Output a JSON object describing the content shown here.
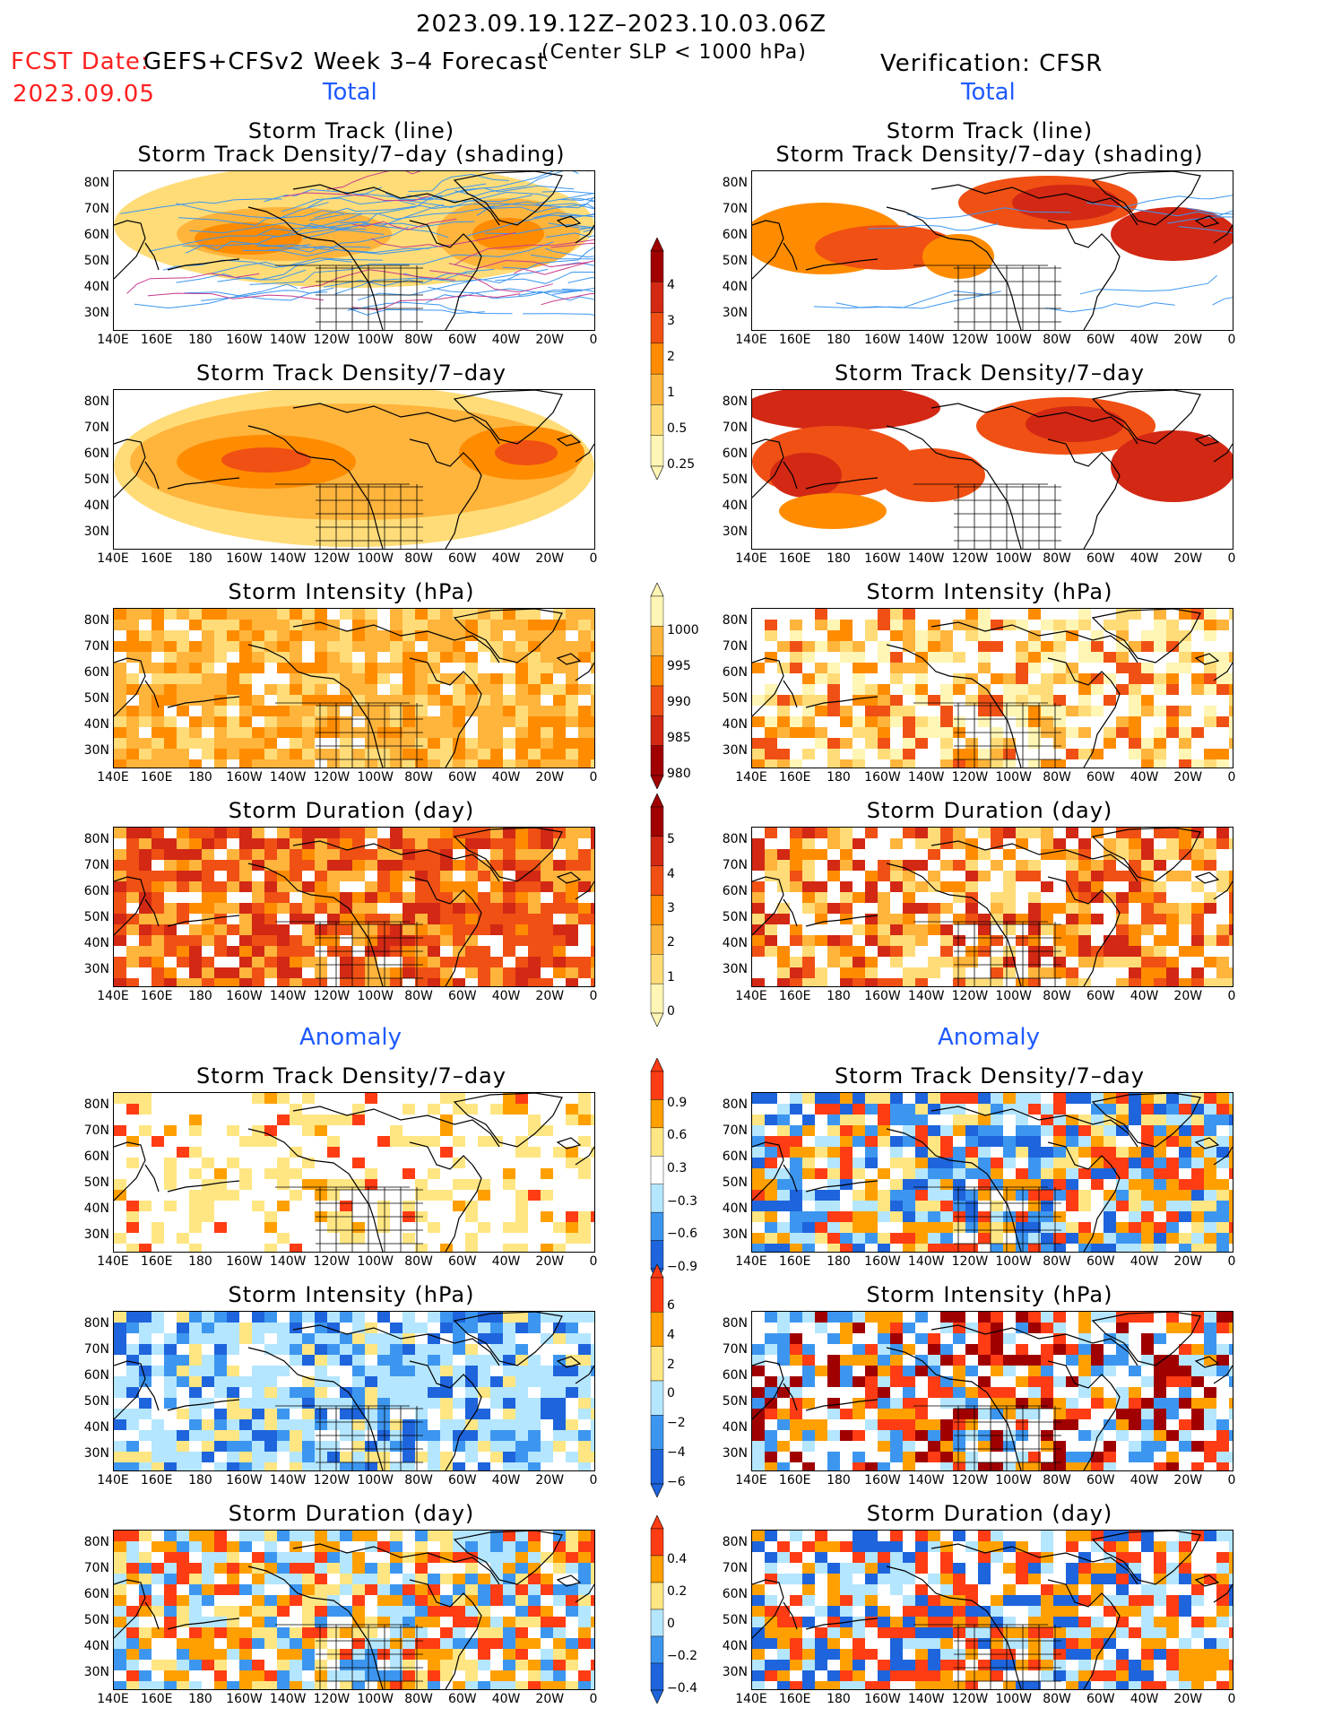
{
  "header": {
    "date_range": "2023.09.19.12Z–2023.10.03.06Z",
    "fcst_label": "FCST Date:",
    "fcst_date": "2023.09.05",
    "model": "GEFS+CFSv2 Week 3–4 Forecast",
    "criterion": "(Center SLP < 1000 hPa)",
    "verification": "Verification: CFSR"
  },
  "sections": {
    "total_left": "Total",
    "total_right": "Total",
    "anomaly_left": "Anomaly",
    "anomaly_right": "Anomaly"
  },
  "panel_titles": {
    "track_line": "Storm Track (line)",
    "track_density_shading": "Storm Track Density/7–day (shading)",
    "track_density": "Storm Track Density/7–day",
    "intensity": "Storm Intensity (hPa)",
    "duration": "Storm Duration (day)"
  },
  "axes": {
    "lat_labels": [
      "80N",
      "70N",
      "60N",
      "50N",
      "40N",
      "30N"
    ],
    "lon_labels": [
      "140E",
      "160E",
      "180",
      "160W",
      "140W",
      "120W",
      "100W",
      "80W",
      "60W",
      "40W",
      "20W",
      "0"
    ]
  },
  "colorbars": {
    "density_total": [
      "4",
      "3",
      "2",
      "1",
      "0.5",
      "0.25"
    ],
    "intensity_total": [
      "1000",
      "995",
      "990",
      "985",
      "980"
    ],
    "duration_total": [
      "5",
      "4",
      "3",
      "2",
      "1",
      "0"
    ],
    "density_anom": [
      "0.9",
      "0.6",
      "0.3",
      "−0.3",
      "−0.6",
      "−0.9"
    ],
    "intensity_anom": [
      "6",
      "4",
      "2",
      "0",
      "−2",
      "−4",
      "−6"
    ],
    "duration_anom": [
      "0.4",
      "0.2",
      "0",
      "−0.2",
      "−0.4"
    ]
  },
  "colors": {
    "total_scale": [
      "#fff5b4",
      "#ffdc78",
      "#ffb43c",
      "#ff8c00",
      "#f05014",
      "#d22814",
      "#a00000"
    ],
    "anom_scale": [
      "#1e64dc",
      "#3c96f0",
      "#b4e6ff",
      "#ffffff",
      "#ffe682",
      "#ffa000",
      "#ff3c14"
    ]
  }
}
